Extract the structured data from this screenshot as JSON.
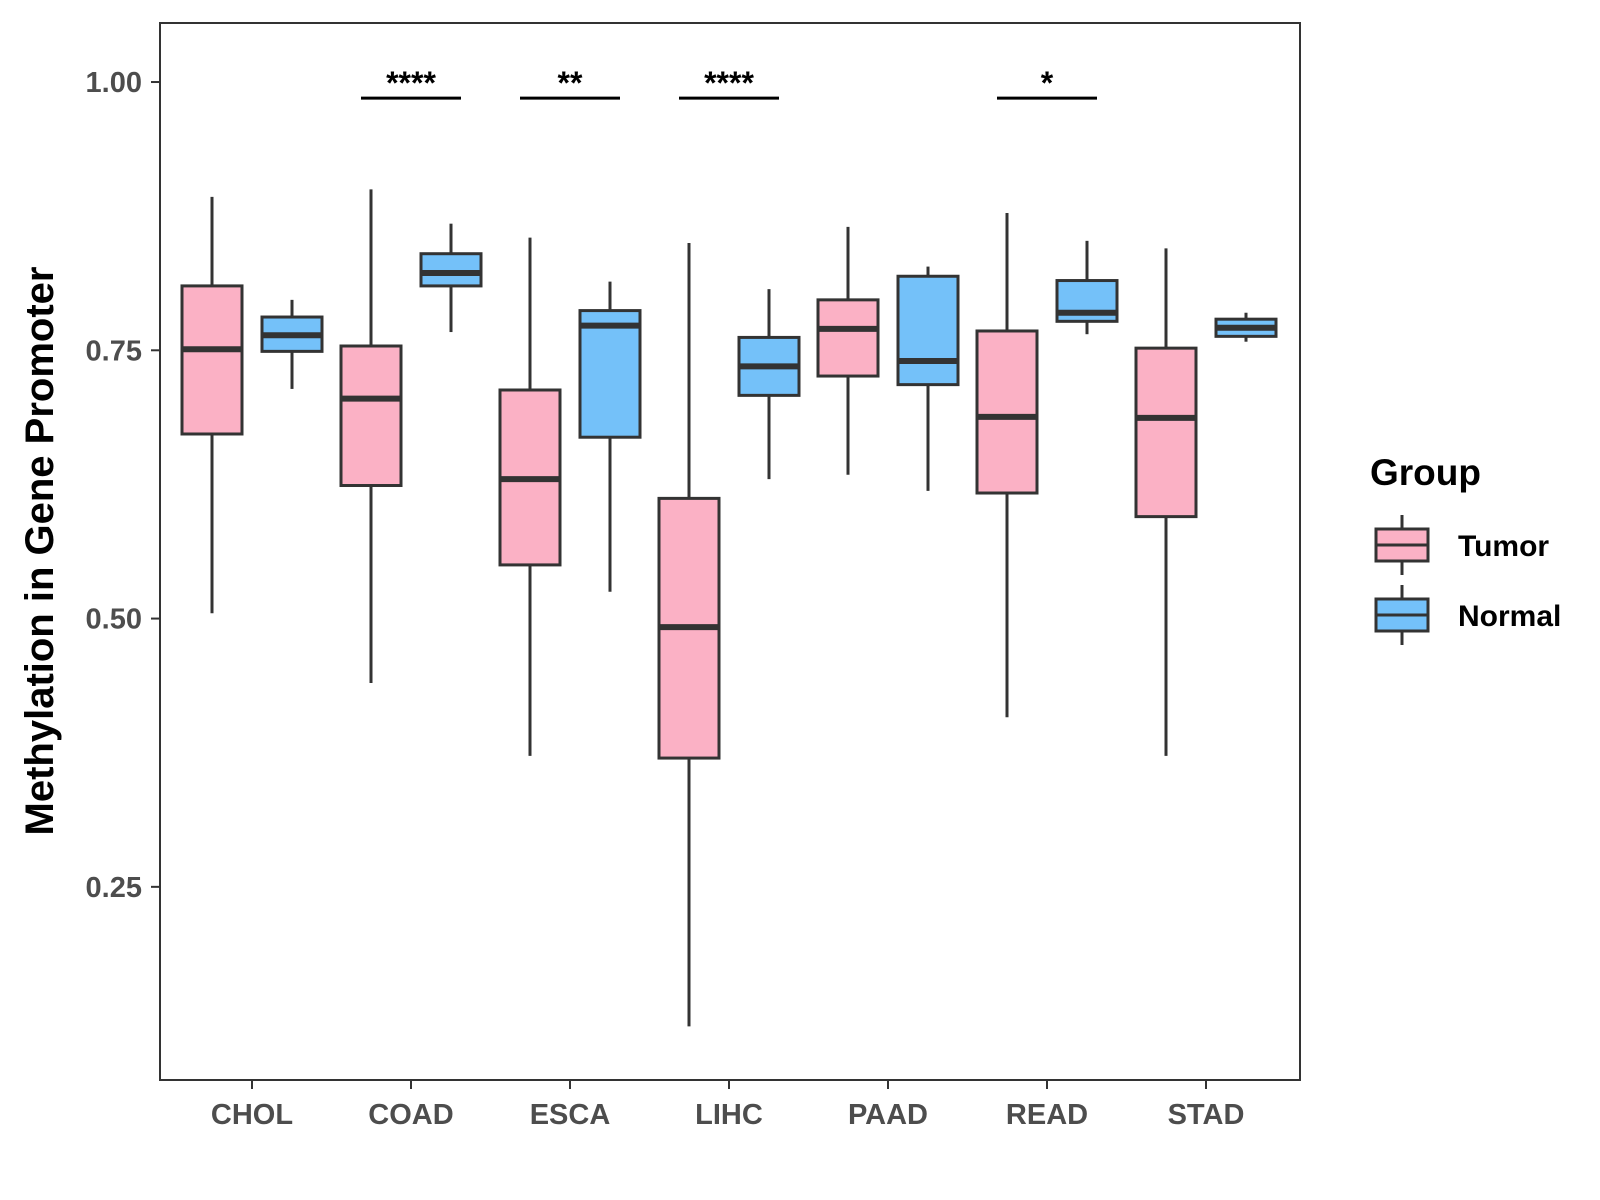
{
  "chart_data": {
    "type": "boxplot",
    "title": "",
    "xlabel": "",
    "ylabel": "Methylation in Gene Promoter",
    "ylim": [
      0.07,
      1.055
    ],
    "yticks": [
      0.25,
      0.5,
      0.75,
      1.0
    ],
    "ytick_labels": [
      "0.25",
      "0.50",
      "0.75",
      "1.00"
    ],
    "categories": [
      "CHOL",
      "COAD",
      "ESCA",
      "LIHC",
      "PAAD",
      "READ",
      "STAD"
    ],
    "legend": {
      "title": "Group",
      "position": "right",
      "entries": [
        {
          "name": "Tumor",
          "color": "#FBB1C5"
        },
        {
          "name": "Normal",
          "color": "#74C1F9"
        }
      ]
    },
    "series": [
      {
        "name": "Tumor",
        "color": "#FBB1C5",
        "boxes": [
          {
            "category": "CHOL",
            "min": 0.505,
            "q1": 0.672,
            "median": 0.751,
            "q3": 0.81,
            "max": 0.893
          },
          {
            "category": "COAD",
            "min": 0.44,
            "q1": 0.624,
            "median": 0.705,
            "q3": 0.754,
            "max": 0.9
          },
          {
            "category": "ESCA",
            "min": 0.372,
            "q1": 0.55,
            "median": 0.63,
            "q3": 0.713,
            "max": 0.855
          },
          {
            "category": "LIHC",
            "min": 0.12,
            "q1": 0.37,
            "median": 0.492,
            "q3": 0.612,
            "max": 0.85
          },
          {
            "category": "PAAD",
            "min": 0.634,
            "q1": 0.726,
            "median": 0.77,
            "q3": 0.797,
            "max": 0.865
          },
          {
            "category": "READ",
            "min": 0.408,
            "q1": 0.617,
            "median": 0.688,
            "q3": 0.768,
            "max": 0.878
          },
          {
            "category": "STAD",
            "min": 0.372,
            "q1": 0.595,
            "median": 0.687,
            "q3": 0.752,
            "max": 0.845
          }
        ]
      },
      {
        "name": "Normal",
        "color": "#74C1F9",
        "boxes": [
          {
            "category": "CHOL",
            "min": 0.714,
            "q1": 0.749,
            "median": 0.764,
            "q3": 0.781,
            "max": 0.797
          },
          {
            "category": "COAD",
            "min": 0.767,
            "q1": 0.81,
            "median": 0.822,
            "q3": 0.84,
            "max": 0.868
          },
          {
            "category": "ESCA",
            "min": 0.525,
            "q1": 0.669,
            "median": 0.773,
            "q3": 0.787,
            "max": 0.814
          },
          {
            "category": "LIHC",
            "min": 0.63,
            "q1": 0.708,
            "median": 0.735,
            "q3": 0.762,
            "max": 0.807
          },
          {
            "category": "PAAD",
            "min": 0.619,
            "q1": 0.718,
            "median": 0.74,
            "q3": 0.819,
            "max": 0.828
          },
          {
            "category": "READ",
            "min": 0.765,
            "q1": 0.777,
            "median": 0.785,
            "q3": 0.815,
            "max": 0.852
          },
          {
            "category": "STAD",
            "min": 0.758,
            "q1": 0.763,
            "median": 0.771,
            "q3": 0.779,
            "max": 0.785
          }
        ]
      }
    ],
    "significance": [
      {
        "category": "COAD",
        "label": "****"
      },
      {
        "category": "ESCA",
        "label": "**"
      },
      {
        "category": "LIHC",
        "label": "****"
      },
      {
        "category": "READ",
        "label": "*"
      }
    ],
    "significance_level": 0.985
  }
}
